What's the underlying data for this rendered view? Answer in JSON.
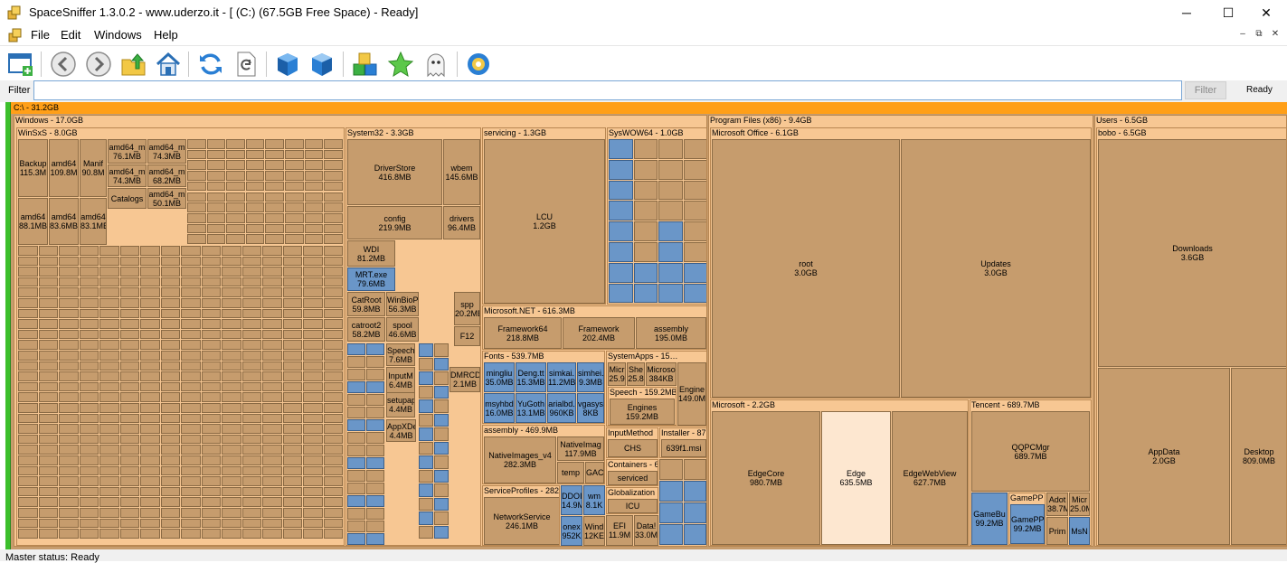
{
  "window": {
    "title": "SpaceSniffer 1.3.0.2 - www.uderzo.it - [ (C:) (67.5GB Free Space) - Ready]",
    "minimize_glyph": "─",
    "maximize_glyph": "☐",
    "close_glyph": "✕"
  },
  "menu": {
    "items": [
      "File",
      "Edit",
      "Windows",
      "Help"
    ]
  },
  "mdi": {
    "minimize": "–",
    "restore": "⧉",
    "close": "✕"
  },
  "toolbar": {
    "buttons": [
      "new-view",
      "back",
      "forward",
      "up-folder",
      "home",
      "refresh",
      "refresh-file",
      "blue-cube",
      "blue-cube-2",
      "colored-blocks",
      "star",
      "ghost",
      "settings-gear"
    ]
  },
  "filter": {
    "label": "Filter",
    "value": "",
    "button": "Filter",
    "status": "Ready"
  },
  "statusbar": {
    "text": "Master status: Ready"
  },
  "treemap": {
    "root": "C:\\ - 31.2GB",
    "windows": "Windows - 17.0GB",
    "winsxs": "WinSxS - 8.0GB",
    "system32": "System32 - 3.3GB",
    "servicing": "servicing - 1.3GB",
    "syswow64": "SysWOW64 - 1.0GB",
    "dotnet": "Microsoft.NET - 616.3MB",
    "fonts": "Fonts - 539.7MB",
    "systemapps": "SystemApps - 15…",
    "assembly": "assembly - 469.9MB",
    "serviceprofiles": "ServiceProfiles - 282…",
    "programfiles": "Program Files (x86) - 9.4GB",
    "msoffice": "Microsoft Office - 6.1GB",
    "microsoft": "Microsoft - 2.2GB",
    "tencent": "Tencent - 689.7MB",
    "users": "Users - 6.5GB",
    "bobo": "bobo - 6.5GB",
    "speech": "Speech - 159.2MB",
    "inputmethod": "InputMethod",
    "installer": "Installer - 87…",
    "containers": "Containers - 6…",
    "globalization": "Globalization",
    "gamepp": "GamePP",
    "files": {
      "backup": "Backup\n115.3M",
      "amd1": "amd64\n109.8M",
      "manif": "Manif\n90.8M",
      "amd76": "amd64_m\n76.1MB",
      "amd74": "amd64_m\n74.3MB",
      "amd74b": "amd64_m\n74.3MB",
      "amd68": "amd64_m\n68.2MB",
      "catalogs": "Catalogs",
      "amd50": "amd64_m\n50.1MB",
      "amd88": "amd64\n88.1MB",
      "amd83a": "amd64\n83.6MB",
      "amd83b": "amd64\n83.1MB",
      "driverstore": "DriverStore\n416.8MB",
      "wbem": "wbem\n145.6MB",
      "config": "config\n219.9MB",
      "drivers": "drivers\n96.4MB",
      "wdi": "WDI\n81.2MB",
      "mrt": "MRT.exe\n79.6MB",
      "catroot": "CatRoot\n59.8MB",
      "winbio": "WinBioP\n56.3MB",
      "catroot2": "catroot2\n58.2MB",
      "spool": "spool\n46.6MB",
      "spp": "spp\n20.2MB",
      "f12": "F12",
      "speechf": "Speech\n7.6MB",
      "inputm": "InputM\n6.4MB",
      "appxde": "AppXDe\n4.4MB",
      "setupapi": "setupap\n4.4MB",
      "dmrcd": "DMRCD\n2.1MB",
      "lcu": "LCU\n1.2GB",
      "fw64": "Framework64\n218.8MB",
      "fw": "Framework\n202.4MB",
      "assemblyf": "assembly\n195.0MB",
      "mingliu": "mingliu\n35.0MB",
      "deng": "Deng.tt\n15.3MB",
      "simkai": "simkai.\n11.2MB",
      "simhei": "simhei.\n9.3MB",
      "msyh": "msyhbd\n16.0MB",
      "yugoth": "YuGoth\n13.1MB",
      "arialbd": "arialbd.\n960KB",
      "vgasys": "vgasys\n8KB",
      "micro": "Micr\n25.9",
      "she": "She\n25.8",
      "microso": "Microso\n384KB",
      "engine": "Engine\n149.0M",
      "engines": "Engines\n159.2MB",
      "chs": "CHS",
      "msi": "639f1.msi",
      "serviced": "serviced",
      "icu": "ICU",
      "nativeimages": "NativeImages_v4\n282.3MB",
      "nativeimag": "NativeImag\n117.9MB",
      "temp": "temp",
      "gac": "GAC",
      "networkservice": "NetworkService\n246.1MB",
      "ddo": "DDOI\n14.9M",
      "onex": "onex\n952K",
      "wind": "Wind\n12KE",
      "efi": "EFI\n11.9M",
      "data": "Data!\n33.0M",
      "root": "root\n3.0GB",
      "updates": "Updates\n3.0GB",
      "edgecore": "EdgeCore\n980.7MB",
      "edge": "Edge\n635.5MB",
      "edgewebview": "EdgeWebView\n627.7MB",
      "qqpcmgr": "QQPCMgr\n689.7MB",
      "gamebu": "GameBu\n99.2MB",
      "gamepp2": "GamePP\n99.2MB",
      "adot": "Adot\n38.7M",
      "micr": "Micr\n25.0M",
      "prim": "Prim",
      "msn": "MsN",
      "downloads": "Downloads\n3.6GB",
      "appdata": "AppData\n2.0GB",
      "desktop": "Desktop\n809.0MB"
    }
  }
}
